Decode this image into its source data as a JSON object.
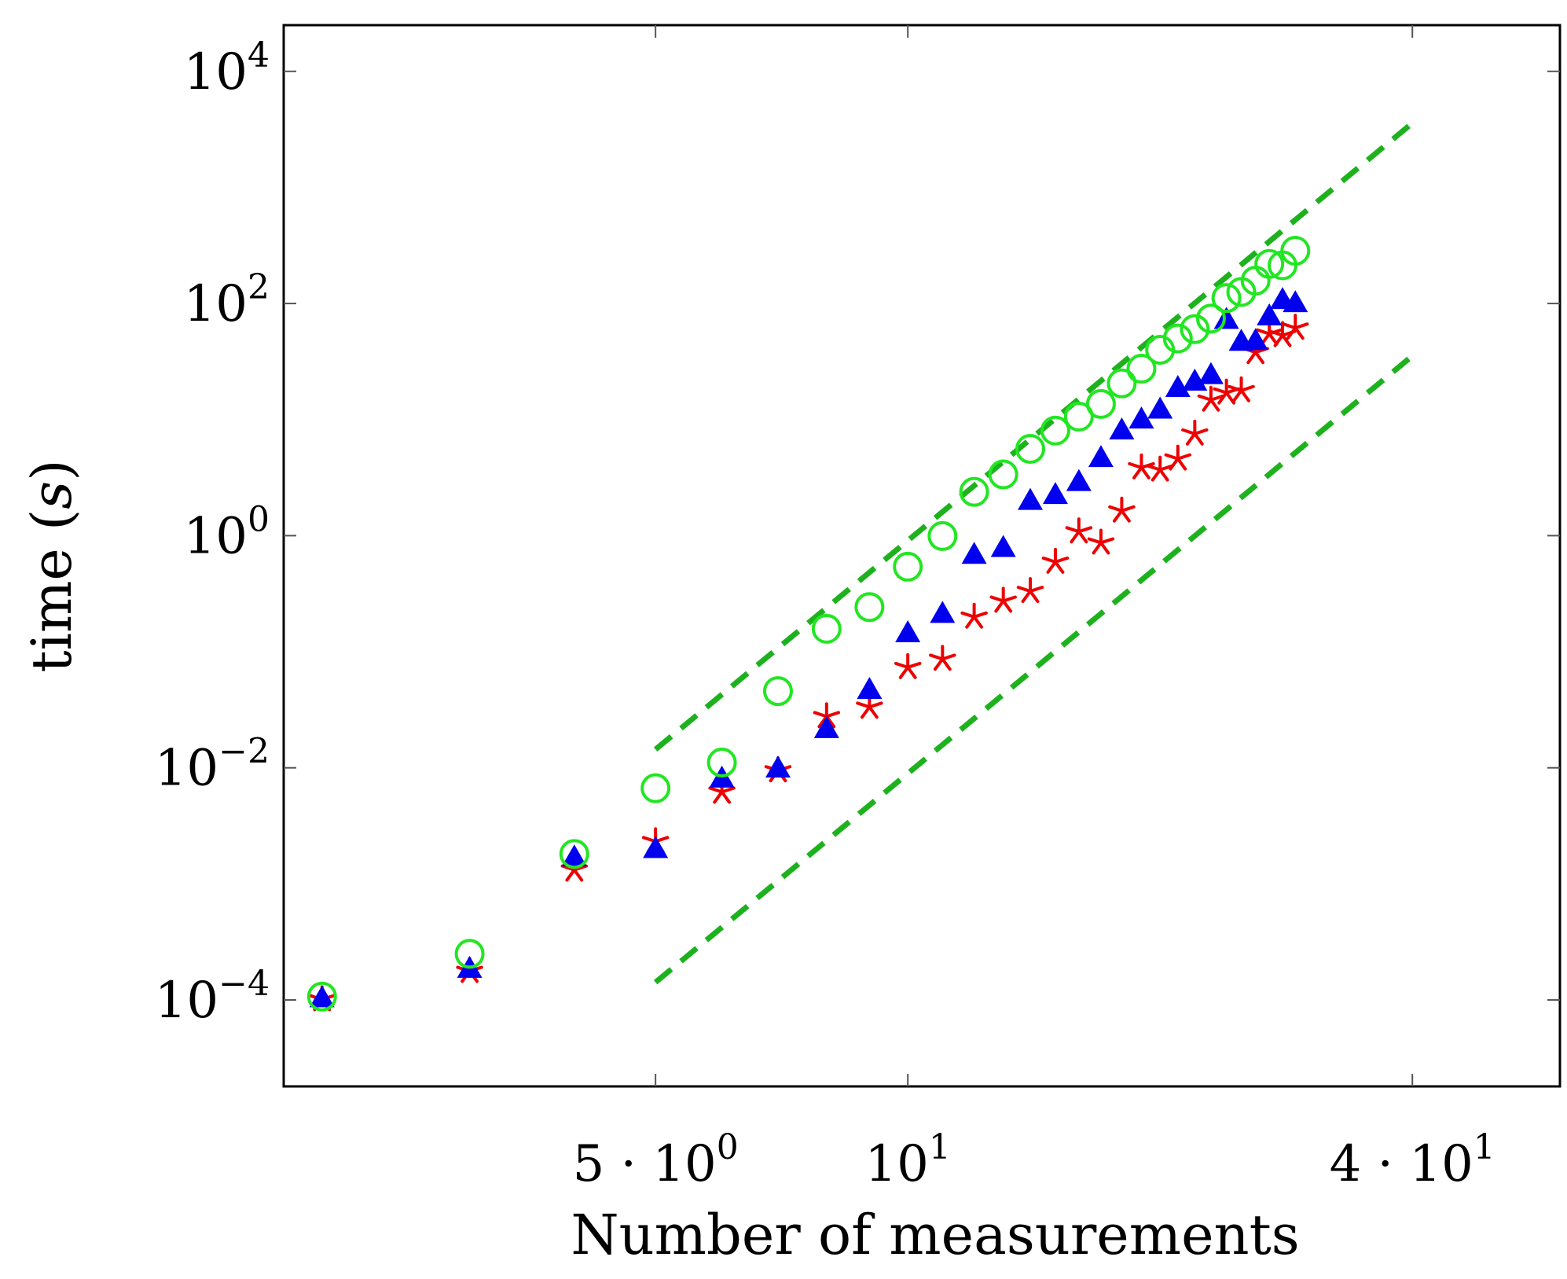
{
  "chart_data": {
    "type": "scatter",
    "title": "",
    "xlabel": "Number of measurements",
    "ylabel_text": "time (",
    "ylabel_var": "s",
    "ylabel_close": ")",
    "x_scale": "log",
    "y_scale": "log",
    "xlim": [
      1.8,
      60
    ],
    "ylim": [
      1.8e-05,
      25000
    ],
    "grid": false,
    "x_ticks": [
      {
        "value": 5,
        "base": "5 · 10",
        "exp": "0"
      },
      {
        "value": 10,
        "base": "10",
        "exp": "1"
      },
      {
        "value": 40,
        "base": "4 · 10",
        "exp": "1"
      }
    ],
    "y_ticks": [
      {
        "value": 0.0001,
        "base": "10",
        "exp": "−4"
      },
      {
        "value": 0.01,
        "base": "10",
        "exp": "−2"
      },
      {
        "value": 1,
        "base": "10",
        "exp": "0"
      },
      {
        "value": 100,
        "base": "10",
        "exp": "2"
      },
      {
        "value": 10000,
        "base": "10",
        "exp": "4"
      }
    ],
    "series": [
      {
        "name": "circles",
        "marker": "circle",
        "color": "#22e622",
        "points": [
          [
            2,
            0.000107
          ],
          [
            3,
            0.00025
          ],
          [
            4,
            0.00181
          ],
          [
            5,
            0.00667
          ],
          [
            6,
            0.0111
          ],
          [
            7,
            0.0458
          ],
          [
            8,
            0.1577
          ],
          [
            9,
            0.2424
          ],
          [
            10,
            0.5398
          ],
          [
            11,
            0.9917
          ],
          [
            12,
            2.385
          ],
          [
            13,
            3.368
          ],
          [
            14,
            5.592
          ],
          [
            15,
            8.037
          ],
          [
            16,
            10.6
          ],
          [
            17,
            13.63
          ],
          [
            18,
            20.52
          ],
          [
            19,
            27.44
          ],
          [
            20,
            39.93
          ],
          [
            21,
            49.94
          ],
          [
            22,
            60.16
          ],
          [
            23,
            74.12
          ],
          [
            24,
            111.4
          ],
          [
            25,
            125.8
          ],
          [
            26,
            157.5
          ],
          [
            27,
            219.2
          ],
          [
            28,
            213.3
          ],
          [
            29,
            284.5
          ]
        ]
      },
      {
        "name": "triangles",
        "marker": "triangle",
        "color": "#0000ee",
        "points": [
          [
            2,
            0.000102
          ],
          [
            3,
            0.000183
          ],
          [
            4,
            0.00167
          ],
          [
            5,
            0.00197
          ],
          [
            6,
            0.00797
          ],
          [
            7,
            0.00973
          ],
          [
            8,
            0.0213
          ],
          [
            9,
            0.0463
          ],
          [
            10,
            0.1425
          ],
          [
            11,
            0.2093
          ],
          [
            12,
            0.6743
          ],
          [
            13,
            0.7742
          ],
          [
            14,
            1.969
          ],
          [
            15,
            2.212
          ],
          [
            16,
            2.863
          ],
          [
            17,
            4.6
          ],
          [
            18,
            7.961
          ],
          [
            19,
            9.886
          ],
          [
            20,
            12.03
          ],
          [
            21,
            18.47
          ],
          [
            22,
            20.99
          ],
          [
            23,
            23.85
          ],
          [
            24,
            71.34
          ],
          [
            25,
            46.22
          ],
          [
            26,
            46.93
          ],
          [
            27,
            76.49
          ],
          [
            28,
            105.8
          ],
          [
            29,
            99.4
          ]
        ]
      },
      {
        "name": "asterisks",
        "marker": "asterisk",
        "color": "#ee0000",
        "points": [
          [
            2,
            0.000101
          ],
          [
            3,
            0.000177
          ],
          [
            4,
            0.00132
          ],
          [
            5,
            0.00232
          ],
          [
            6,
            0.00619
          ],
          [
            7,
            0.00947
          ],
          [
            8,
            0.0277
          ],
          [
            9,
            0.0334
          ],
          [
            10,
            0.0734
          ],
          [
            11,
            0.0865
          ],
          [
            12,
            0.1996
          ],
          [
            13,
            0.2738
          ],
          [
            14,
            0.3322
          ],
          [
            15,
            0.5931
          ],
          [
            16,
            1.083
          ],
          [
            17,
            0.8683
          ],
          [
            18,
            1.638
          ],
          [
            19,
            3.857
          ],
          [
            20,
            3.693
          ],
          [
            21,
            4.595
          ],
          [
            22,
            7.541
          ],
          [
            23,
            14.77
          ],
          [
            24,
            17.02
          ],
          [
            25,
            17.81
          ],
          [
            26,
            37.94
          ],
          [
            27,
            54.81
          ],
          [
            28,
            53.19
          ],
          [
            29,
            61.6
          ]
        ]
      }
    ],
    "reference_lines": [
      {
        "name": "upper-reference-line",
        "style": "dashed",
        "color": "#1db21d",
        "from": [
          5,
          0.0144
        ],
        "to": [
          40,
          3585
        ]
      },
      {
        "name": "lower-reference-line",
        "style": "dashed",
        "color": "#1db21d",
        "from": [
          5,
          0.000142
        ],
        "to": [
          40,
          35.4
        ]
      }
    ]
  }
}
